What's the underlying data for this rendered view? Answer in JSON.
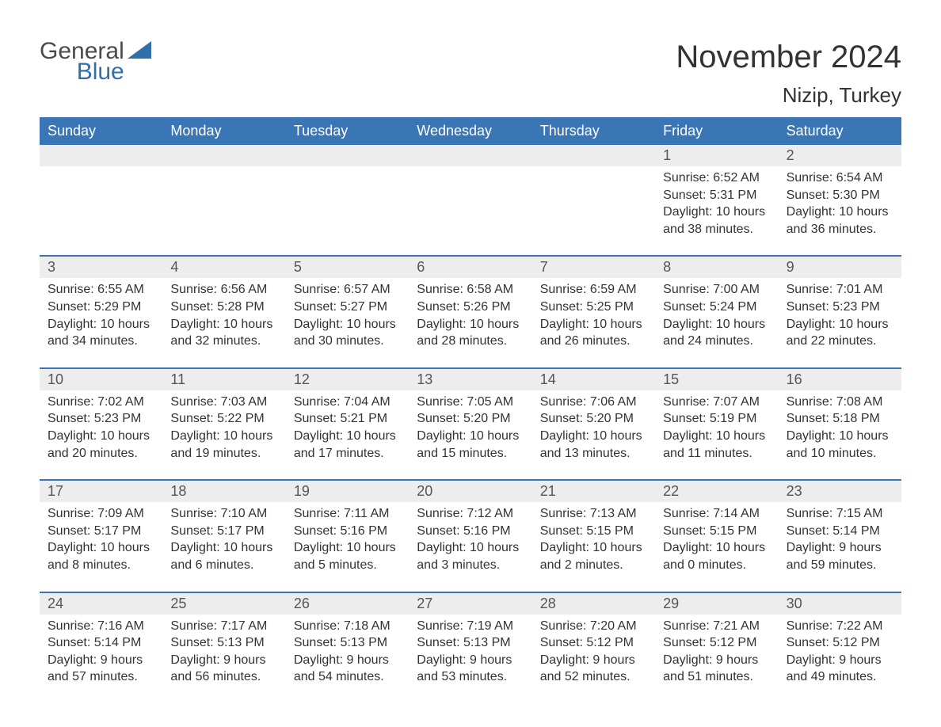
{
  "brand": {
    "word1": "General",
    "word2": "Blue",
    "shape_color": "#2f6fab"
  },
  "title": "November 2024",
  "location": "Nizip, Turkey",
  "colors": {
    "header_bg": "#3a76b5",
    "header_text": "#ffffff",
    "daynum_bg": "#ededed",
    "cell_border": "#3a76b5",
    "text": "#333333",
    "background": "#ffffff"
  },
  "weekdays": [
    "Sunday",
    "Monday",
    "Tuesday",
    "Wednesday",
    "Thursday",
    "Friday",
    "Saturday"
  ],
  "weeks": [
    [
      null,
      null,
      null,
      null,
      null,
      {
        "n": "1",
        "sunrise": "Sunrise: 6:52 AM",
        "sunset": "Sunset: 5:31 PM",
        "d1": "Daylight: 10 hours",
        "d2": "and 38 minutes."
      },
      {
        "n": "2",
        "sunrise": "Sunrise: 6:54 AM",
        "sunset": "Sunset: 5:30 PM",
        "d1": "Daylight: 10 hours",
        "d2": "and 36 minutes."
      }
    ],
    [
      {
        "n": "3",
        "sunrise": "Sunrise: 6:55 AM",
        "sunset": "Sunset: 5:29 PM",
        "d1": "Daylight: 10 hours",
        "d2": "and 34 minutes."
      },
      {
        "n": "4",
        "sunrise": "Sunrise: 6:56 AM",
        "sunset": "Sunset: 5:28 PM",
        "d1": "Daylight: 10 hours",
        "d2": "and 32 minutes."
      },
      {
        "n": "5",
        "sunrise": "Sunrise: 6:57 AM",
        "sunset": "Sunset: 5:27 PM",
        "d1": "Daylight: 10 hours",
        "d2": "and 30 minutes."
      },
      {
        "n": "6",
        "sunrise": "Sunrise: 6:58 AM",
        "sunset": "Sunset: 5:26 PM",
        "d1": "Daylight: 10 hours",
        "d2": "and 28 minutes."
      },
      {
        "n": "7",
        "sunrise": "Sunrise: 6:59 AM",
        "sunset": "Sunset: 5:25 PM",
        "d1": "Daylight: 10 hours",
        "d2": "and 26 minutes."
      },
      {
        "n": "8",
        "sunrise": "Sunrise: 7:00 AM",
        "sunset": "Sunset: 5:24 PM",
        "d1": "Daylight: 10 hours",
        "d2": "and 24 minutes."
      },
      {
        "n": "9",
        "sunrise": "Sunrise: 7:01 AM",
        "sunset": "Sunset: 5:23 PM",
        "d1": "Daylight: 10 hours",
        "d2": "and 22 minutes."
      }
    ],
    [
      {
        "n": "10",
        "sunrise": "Sunrise: 7:02 AM",
        "sunset": "Sunset: 5:23 PM",
        "d1": "Daylight: 10 hours",
        "d2": "and 20 minutes."
      },
      {
        "n": "11",
        "sunrise": "Sunrise: 7:03 AM",
        "sunset": "Sunset: 5:22 PM",
        "d1": "Daylight: 10 hours",
        "d2": "and 19 minutes."
      },
      {
        "n": "12",
        "sunrise": "Sunrise: 7:04 AM",
        "sunset": "Sunset: 5:21 PM",
        "d1": "Daylight: 10 hours",
        "d2": "and 17 minutes."
      },
      {
        "n": "13",
        "sunrise": "Sunrise: 7:05 AM",
        "sunset": "Sunset: 5:20 PM",
        "d1": "Daylight: 10 hours",
        "d2": "and 15 minutes."
      },
      {
        "n": "14",
        "sunrise": "Sunrise: 7:06 AM",
        "sunset": "Sunset: 5:20 PM",
        "d1": "Daylight: 10 hours",
        "d2": "and 13 minutes."
      },
      {
        "n": "15",
        "sunrise": "Sunrise: 7:07 AM",
        "sunset": "Sunset: 5:19 PM",
        "d1": "Daylight: 10 hours",
        "d2": "and 11 minutes."
      },
      {
        "n": "16",
        "sunrise": "Sunrise: 7:08 AM",
        "sunset": "Sunset: 5:18 PM",
        "d1": "Daylight: 10 hours",
        "d2": "and 10 minutes."
      }
    ],
    [
      {
        "n": "17",
        "sunrise": "Sunrise: 7:09 AM",
        "sunset": "Sunset: 5:17 PM",
        "d1": "Daylight: 10 hours",
        "d2": "and 8 minutes."
      },
      {
        "n": "18",
        "sunrise": "Sunrise: 7:10 AM",
        "sunset": "Sunset: 5:17 PM",
        "d1": "Daylight: 10 hours",
        "d2": "and 6 minutes."
      },
      {
        "n": "19",
        "sunrise": "Sunrise: 7:11 AM",
        "sunset": "Sunset: 5:16 PM",
        "d1": "Daylight: 10 hours",
        "d2": "and 5 minutes."
      },
      {
        "n": "20",
        "sunrise": "Sunrise: 7:12 AM",
        "sunset": "Sunset: 5:16 PM",
        "d1": "Daylight: 10 hours",
        "d2": "and 3 minutes."
      },
      {
        "n": "21",
        "sunrise": "Sunrise: 7:13 AM",
        "sunset": "Sunset: 5:15 PM",
        "d1": "Daylight: 10 hours",
        "d2": "and 2 minutes."
      },
      {
        "n": "22",
        "sunrise": "Sunrise: 7:14 AM",
        "sunset": "Sunset: 5:15 PM",
        "d1": "Daylight: 10 hours",
        "d2": "and 0 minutes."
      },
      {
        "n": "23",
        "sunrise": "Sunrise: 7:15 AM",
        "sunset": "Sunset: 5:14 PM",
        "d1": "Daylight: 9 hours",
        "d2": "and 59 minutes."
      }
    ],
    [
      {
        "n": "24",
        "sunrise": "Sunrise: 7:16 AM",
        "sunset": "Sunset: 5:14 PM",
        "d1": "Daylight: 9 hours",
        "d2": "and 57 minutes."
      },
      {
        "n": "25",
        "sunrise": "Sunrise: 7:17 AM",
        "sunset": "Sunset: 5:13 PM",
        "d1": "Daylight: 9 hours",
        "d2": "and 56 minutes."
      },
      {
        "n": "26",
        "sunrise": "Sunrise: 7:18 AM",
        "sunset": "Sunset: 5:13 PM",
        "d1": "Daylight: 9 hours",
        "d2": "and 54 minutes."
      },
      {
        "n": "27",
        "sunrise": "Sunrise: 7:19 AM",
        "sunset": "Sunset: 5:13 PM",
        "d1": "Daylight: 9 hours",
        "d2": "and 53 minutes."
      },
      {
        "n": "28",
        "sunrise": "Sunrise: 7:20 AM",
        "sunset": "Sunset: 5:12 PM",
        "d1": "Daylight: 9 hours",
        "d2": "and 52 minutes."
      },
      {
        "n": "29",
        "sunrise": "Sunrise: 7:21 AM",
        "sunset": "Sunset: 5:12 PM",
        "d1": "Daylight: 9 hours",
        "d2": "and 51 minutes."
      },
      {
        "n": "30",
        "sunrise": "Sunrise: 7:22 AM",
        "sunset": "Sunset: 5:12 PM",
        "d1": "Daylight: 9 hours",
        "d2": "and 49 minutes."
      }
    ]
  ]
}
